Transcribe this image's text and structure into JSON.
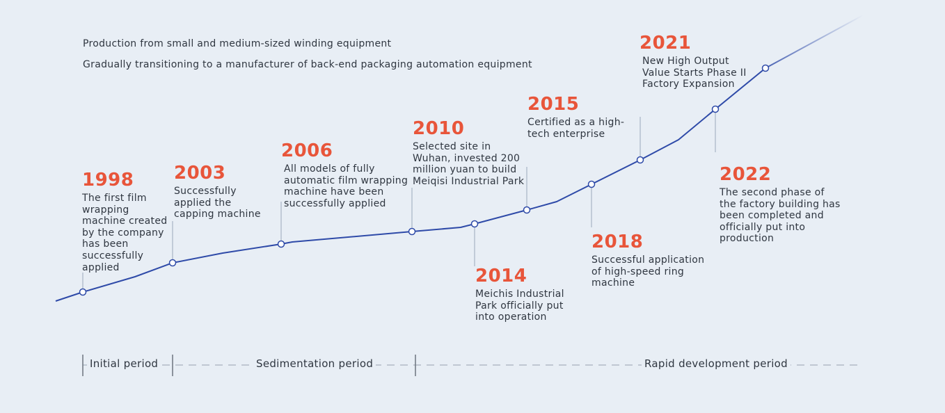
{
  "intro": {
    "line1": "Production from small and medium-sized winding equipment",
    "line2": "Gradually transitioning to a manufacturer of back-end packaging automation equipment"
  },
  "events": [
    {
      "year": "1998",
      "description": "The first film wrapping machine created by the company has been successfully applied"
    },
    {
      "year": "2003",
      "description": "Successfully applied the capping machine"
    },
    {
      "year": "2006",
      "description": "All models of fully automatic film wrapping machine have been successfully applied"
    },
    {
      "year": "2010",
      "description": "Selected site in Wuhan, invested 200 million yuan to build Meiqisi Industrial Park"
    },
    {
      "year": "2014",
      "description": "Meichis Industrial Park officially put into operation"
    },
    {
      "year": "2015",
      "description": "Certified as a high-tech enterprise"
    },
    {
      "year": "2018",
      "description": "Successful application of high-speed ring machine"
    },
    {
      "year": "2021",
      "description": "New High Output Value Starts Phase II Factory Expansion"
    },
    {
      "year": "2022",
      "description": "The second phase of the factory building has been completed and officially put into production"
    }
  ],
  "periods": {
    "initial": "Initial period",
    "sedimentation": "Sedimentation period",
    "rapid": "Rapid development period"
  },
  "colors": {
    "background": "#e8eef5",
    "line": "#2e4aa8",
    "year": "#e8553a",
    "connector": "#9aa8bb"
  }
}
